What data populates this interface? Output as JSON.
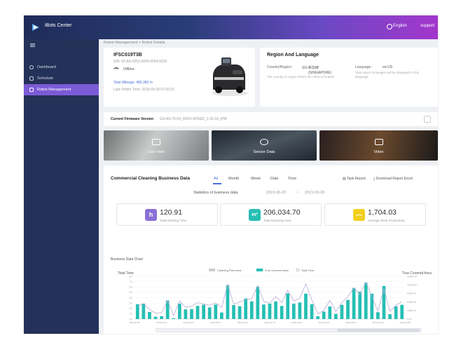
{
  "app": {
    "title": "iBots Center",
    "language": "English",
    "support": "support"
  },
  "sidebar": {
    "items": [
      {
        "label": "Dashboard",
        "icon": "clock-icon",
        "active": false
      },
      {
        "label": "Schedule",
        "icon": "calendar-icon",
        "active": false
      },
      {
        "label": "Robot Management",
        "icon": "robot-icon",
        "active": true
      }
    ]
  },
  "breadcrumb": "Robot Management  >  Robot Details",
  "robot": {
    "name": "IFSC019T3B",
    "sn": "S/N: 65-AS-0051-0005-0004-0019",
    "status": "Offline",
    "mileage": "Total Mileage: 480,380 m",
    "online_time": "Last Online Time: 2019-03-28 07:02:23"
  },
  "region": {
    "title": "Region And Language",
    "country_label": "Country/Region :",
    "country_value": "SG-新加坡",
    "country_value2": "(SINGAPORE)",
    "country_note": "The country or region where the robot is located",
    "language_label": "Language :",
    "language_value": "en-US",
    "language_note": "Task report messages will be displayed in this language."
  },
  "firmware": {
    "label": "Current Firmware Version",
    "value": "GS-AS-75-03_HIGH-SPEED_1-32-18_IPM"
  },
  "tiles": {
    "live": "Live View",
    "sensor": "Sensor Data",
    "video": "Video"
  },
  "business": {
    "title": "Commercial Cleaning Business Data",
    "tabs": [
      "All",
      "Month",
      "Week",
      "Date",
      "Time"
    ],
    "active_tab": "All",
    "task_report": "Task Report",
    "download": "Download Report Excel",
    "stats_label": "Statistics of business data",
    "date_from": "2019-06-03",
    "date_sep": "~",
    "date_to": "2019-03-28",
    "stats": [
      {
        "icon_letter": "h",
        "value": "120.91",
        "label": "Total Working Time",
        "color": "#8b6fd6"
      },
      {
        "icon_letter": "m²",
        "value": "206,034.70",
        "label": "Total Cleaning Area",
        "color": "#26bfb4"
      },
      {
        "icon_letter": "m²/h",
        "value": "1,704.03",
        "label": "Average Work Productivity",
        "color": "#f2cf1f"
      }
    ],
    "chart_label": "Business Data Chart"
  },
  "colors": {
    "accent": "#4b6fe0",
    "sidebar": "#243158",
    "active_nav": "#7b5bd6",
    "bar": "#26bfb4",
    "line": "#b9a9d6"
  },
  "chart_data": {
    "type": "bar",
    "left_axis_title": "Total Time",
    "right_axis_title": "True Covered Area",
    "legend": [
      "Cleaning Plan Area",
      "True Covered Area",
      "Total Time"
    ],
    "left_ticks": [
      "0 h",
      "1 h",
      "2 h",
      "3 h",
      "4 h",
      "5 h",
      "6 h",
      "7 h",
      "8 h"
    ],
    "right_ticks": [
      "0 m²",
      "3,000 m²",
      "6,000 m²",
      "9,000 m²",
      "12,000 m²",
      "15,000 m²"
    ],
    "ylim_left": [
      0,
      8
    ],
    "ylim_right": [
      0,
      15000
    ],
    "x_ticks": [
      "2019-02-28",
      "2019-03-01",
      "2019-03-04",
      "2019-03-07",
      "2019-03-10",
      "2019-03-13",
      "2019-03-16",
      "2019-03-19",
      "2019-03-22",
      "2019-03-25",
      "2019-03-28"
    ],
    "covered_area": [
      5200,
      5400,
      2500,
      800,
      1000,
      6500,
      300,
      5400,
      3400,
      3500,
      4600,
      5000,
      4100,
      5100,
      2300,
      11800,
      4900,
      4500,
      7200,
      6200,
      11300,
      5100,
      5400,
      6200,
      4600,
      9000,
      5400,
      5800,
      8900,
      5200,
      1000,
      2600,
      4400,
      1800,
      5000,
      6700,
      10900,
      9600,
      12700,
      8900,
      2400,
      11600,
      1700,
      4500,
      5000
    ],
    "total_time": [
      2.4,
      2.9,
      1.8,
      1.1,
      1.2,
      3.4,
      0.7,
      3.4,
      2.2,
      2.4,
      3.1,
      2.8,
      2.6,
      3.0,
      2.2,
      6.5,
      2.8,
      3.2,
      3.6,
      3.8,
      6.3,
      3.3,
      3.0,
      4.2,
      3.1,
      5.4,
      3.4,
      3.9,
      6.6,
      3.6,
      1.0,
      1.6,
      3.5,
      1.4,
      3.1,
      4.2,
      5.8,
      4.6,
      6.9,
      4.2,
      1.5,
      5.7,
      1.4,
      2.6,
      3.2
    ]
  }
}
